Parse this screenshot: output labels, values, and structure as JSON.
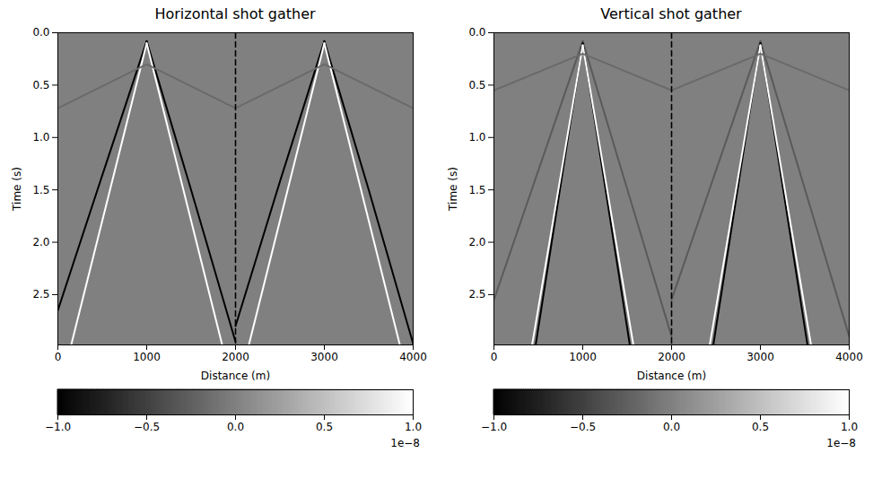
{
  "chart_data": [
    {
      "type": "line",
      "title": "Horizontal shot gather",
      "xlabel": "Distance (m)",
      "ylabel": "Time (s)",
      "xlim": [
        0,
        4000
      ],
      "xticks": [
        0,
        1000,
        2000,
        3000,
        4000
      ],
      "ylim": [
        0,
        2.98
      ],
      "yticks": [
        {
          "value": 0,
          "label": "0.0"
        },
        {
          "value": 0.5,
          "label": "0.5"
        },
        {
          "value": 1,
          "label": "1.0"
        },
        {
          "value": 1.5,
          "label": "1.5"
        },
        {
          "value": 2,
          "label": "2.0"
        },
        {
          "value": 2.5,
          "label": "2.5"
        }
      ],
      "grid": false,
      "series": [
        {
          "color": "#000000",
          "x": [
            1000,
            500,
            0
          ],
          "values": [
            0.08,
            1.36,
            2.65
          ]
        },
        {
          "color": "#000000",
          "x": [
            1000,
            1500,
            2000
          ],
          "values": [
            0.08,
            1.5,
            2.95
          ]
        },
        {
          "color": "#ffffff",
          "x": [
            1000,
            150
          ],
          "values": [
            0.1,
            2.98
          ]
        },
        {
          "color": "#ffffff",
          "x": [
            1000,
            1850
          ],
          "values": [
            0.1,
            2.98
          ]
        },
        {
          "color": "#6a6a6a",
          "x": [
            0,
            1000,
            2000
          ],
          "values": [
            0.72,
            0.3,
            0.72
          ]
        },
        {
          "color": "#000000",
          "x": [
            3000,
            2500,
            2000
          ],
          "values": [
            0.08,
            1.42,
            2.8
          ]
        },
        {
          "color": "#000000",
          "x": [
            3000,
            3500,
            4000
          ],
          "values": [
            0.08,
            1.5,
            2.97
          ]
        },
        {
          "color": "#ffffff",
          "x": [
            3000,
            2150
          ],
          "values": [
            0.1,
            2.98
          ]
        },
        {
          "color": "#ffffff",
          "x": [
            3000,
            3850
          ],
          "values": [
            0.1,
            2.98
          ]
        },
        {
          "color": "#6a6a6a",
          "x": [
            2000,
            3000,
            4000
          ],
          "values": [
            0.72,
            0.3,
            0.72
          ]
        },
        {
          "color": "#000000",
          "line_style": "dashed",
          "x": [
            2000,
            2000
          ],
          "values": [
            0,
            2.98
          ]
        }
      ],
      "colorbar": {
        "range": [
          -1,
          1
        ],
        "colors": [
          "#000000",
          "#ffffff"
        ],
        "ticks": [
          {
            "value": -1,
            "label": "−1.0"
          },
          {
            "value": -0.5,
            "label": "−0.5"
          },
          {
            "value": 0,
            "label": "0.0"
          },
          {
            "value": 0.5,
            "label": "0.5"
          },
          {
            "value": 1,
            "label": "1.0"
          }
        ],
        "scale_label": "1e−8"
      }
    },
    {
      "type": "line",
      "title": "Vertical shot gather",
      "xlabel": "Distance (m)",
      "ylabel": "Time (s)",
      "xlim": [
        0,
        4000
      ],
      "xticks": [
        0,
        1000,
        2000,
        3000,
        4000
      ],
      "ylim": [
        0,
        2.98
      ],
      "yticks": [
        {
          "value": 0,
          "label": "0.0"
        },
        {
          "value": 0.5,
          "label": "0.5"
        },
        {
          "value": 1,
          "label": "1.0"
        },
        {
          "value": 1.5,
          "label": "1.5"
        },
        {
          "value": 2,
          "label": "2.0"
        },
        {
          "value": 2.5,
          "label": "2.5"
        }
      ],
      "grid": false,
      "series": [
        {
          "color": "#5a5a5a",
          "x": [
            1000,
            0
          ],
          "values": [
            0.08,
            2.55
          ]
        },
        {
          "color": "#5a5a5a",
          "x": [
            1000,
            2000
          ],
          "values": [
            0.08,
            2.9
          ]
        },
        {
          "color": "#000000",
          "x": [
            1000,
            470
          ],
          "values": [
            0.1,
            2.98
          ]
        },
        {
          "color": "#000000",
          "x": [
            1000,
            1530
          ],
          "values": [
            0.1,
            2.98
          ]
        },
        {
          "color": "#ffffff",
          "x": [
            1000,
            430
          ],
          "values": [
            0.12,
            2.98
          ]
        },
        {
          "color": "#ffffff",
          "x": [
            1000,
            1570
          ],
          "values": [
            0.12,
            2.98
          ]
        },
        {
          "color": "#6a6a6a",
          "x": [
            0,
            1000,
            2000
          ],
          "values": [
            0.55,
            0.2,
            0.55
          ]
        },
        {
          "color": "#5a5a5a",
          "x": [
            3000,
            2000
          ],
          "values": [
            0.08,
            2.55
          ]
        },
        {
          "color": "#5a5a5a",
          "x": [
            3000,
            4000
          ],
          "values": [
            0.08,
            2.9
          ]
        },
        {
          "color": "#000000",
          "x": [
            3000,
            2470
          ],
          "values": [
            0.1,
            2.98
          ]
        },
        {
          "color": "#000000",
          "x": [
            3000,
            3530
          ],
          "values": [
            0.1,
            2.98
          ]
        },
        {
          "color": "#ffffff",
          "x": [
            3000,
            2430
          ],
          "values": [
            0.12,
            2.98
          ]
        },
        {
          "color": "#ffffff",
          "x": [
            3000,
            3570
          ],
          "values": [
            0.12,
            2.98
          ]
        },
        {
          "color": "#6a6a6a",
          "x": [
            2000,
            3000,
            4000
          ],
          "values": [
            0.55,
            0.2,
            0.55
          ]
        },
        {
          "color": "#000000",
          "line_style": "dashed",
          "x": [
            2000,
            2000
          ],
          "values": [
            0,
            2.98
          ]
        }
      ],
      "colorbar": {
        "range": [
          -1,
          1
        ],
        "colors": [
          "#000000",
          "#ffffff"
        ],
        "ticks": [
          {
            "value": -1,
            "label": "−1.0"
          },
          {
            "value": -0.5,
            "label": "−0.5"
          },
          {
            "value": 0,
            "label": "0.0"
          },
          {
            "value": 0.5,
            "label": "0.5"
          },
          {
            "value": 1,
            "label": "1.0"
          }
        ],
        "scale_label": "1e−8"
      }
    }
  ]
}
